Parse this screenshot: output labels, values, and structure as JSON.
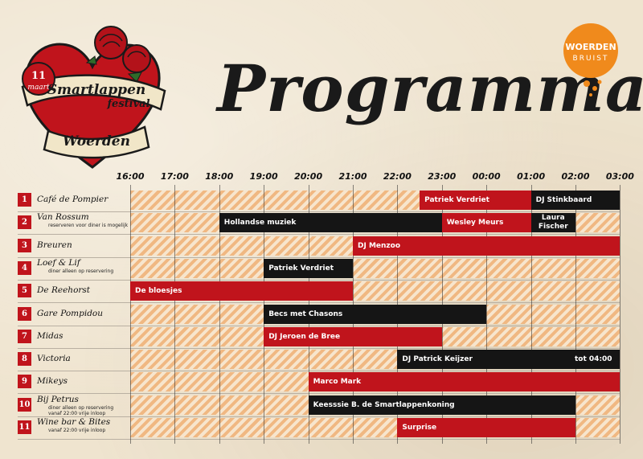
{
  "logo": {
    "date_day": "11",
    "date_month": "maart",
    "line1": "Smartlappen",
    "line2": "festival",
    "city": "Woerden"
  },
  "title": "Programma",
  "brand": {
    "line1": "WOERDEN",
    "line2": "BRUIST"
  },
  "times": [
    "16:00",
    "17:00",
    "18:00",
    "19:00",
    "20:00",
    "21:00",
    "22:00",
    "23:00",
    "00:00",
    "01:00",
    "02:00",
    "03:00"
  ],
  "venues": [
    {
      "num": "1",
      "name": "Café de Pompier",
      "note": ""
    },
    {
      "num": "2",
      "name": "Van Rossum",
      "note": "reserveren voor diner is mogelijk"
    },
    {
      "num": "3",
      "name": "Breuren",
      "note": ""
    },
    {
      "num": "4",
      "name": "Loef & Lif",
      "note": "diner alleen op reservering"
    },
    {
      "num": "5",
      "name": "De Reehorst",
      "note": ""
    },
    {
      "num": "6",
      "name": "Gare Pompidou",
      "note": ""
    },
    {
      "num": "7",
      "name": "Midas",
      "note": ""
    },
    {
      "num": "8",
      "name": "Victoria",
      "note": ""
    },
    {
      "num": "9",
      "name": "Mikeys",
      "note": ""
    },
    {
      "num": "10",
      "name": "Bij Petrus",
      "note": "diner alleen op reservering",
      "note2": "vanaf 22:00 vrije inloop"
    },
    {
      "num": "11",
      "name": "Wine bar & Bites",
      "note": "vanaf 22:00 vrije inloop"
    }
  ],
  "events": [
    {
      "row": 0,
      "start": 22.5,
      "end": 25,
      "label": "Patriek Verdriet",
      "color": "red"
    },
    {
      "row": 0,
      "start": 25,
      "end": 27,
      "label": "DJ Stinkbaard",
      "color": "black"
    },
    {
      "row": 1,
      "start": 18,
      "end": 23,
      "label": "Hollandse muziek",
      "color": "black"
    },
    {
      "row": 1,
      "start": 23,
      "end": 25,
      "label": "Wesley Meurs",
      "color": "red"
    },
    {
      "row": 1,
      "start": 25,
      "end": 26,
      "label": "Laura Fischer",
      "label_line1": "Laura",
      "label_line2": "Fischer",
      "color": "black"
    },
    {
      "row": 2,
      "start": 21,
      "end": 27,
      "label": "DJ Menzoo",
      "color": "red"
    },
    {
      "row": 3,
      "start": 19,
      "end": 21,
      "label": "Patriek Verdriet",
      "color": "black"
    },
    {
      "row": 4,
      "start": 16,
      "end": 21,
      "label": "De bloesjes",
      "color": "red"
    },
    {
      "row": 5,
      "start": 19,
      "end": 24,
      "label": "Becs met Chasons",
      "color": "black"
    },
    {
      "row": 6,
      "start": 19,
      "end": 23,
      "label": "DJ Jeroen de Bree",
      "color": "red"
    },
    {
      "row": 7,
      "start": 22,
      "end": 28,
      "label": "DJ Patrick Keijzer",
      "extra": "tot 04:00",
      "color": "black"
    },
    {
      "row": 8,
      "start": 20,
      "end": 27,
      "label": "Marco Mark",
      "color": "red"
    },
    {
      "row": 9,
      "start": 20,
      "end": 26,
      "label": "Keesssie B. de Smartlappenkoning",
      "color": "black"
    },
    {
      "row": 10,
      "start": 22,
      "end": 26,
      "label": "Surprise",
      "color": "red"
    }
  ],
  "colors": {
    "red": "#c0141c",
    "black": "#151515",
    "stripe": "#f0b882",
    "orange": "#f08a1c"
  }
}
